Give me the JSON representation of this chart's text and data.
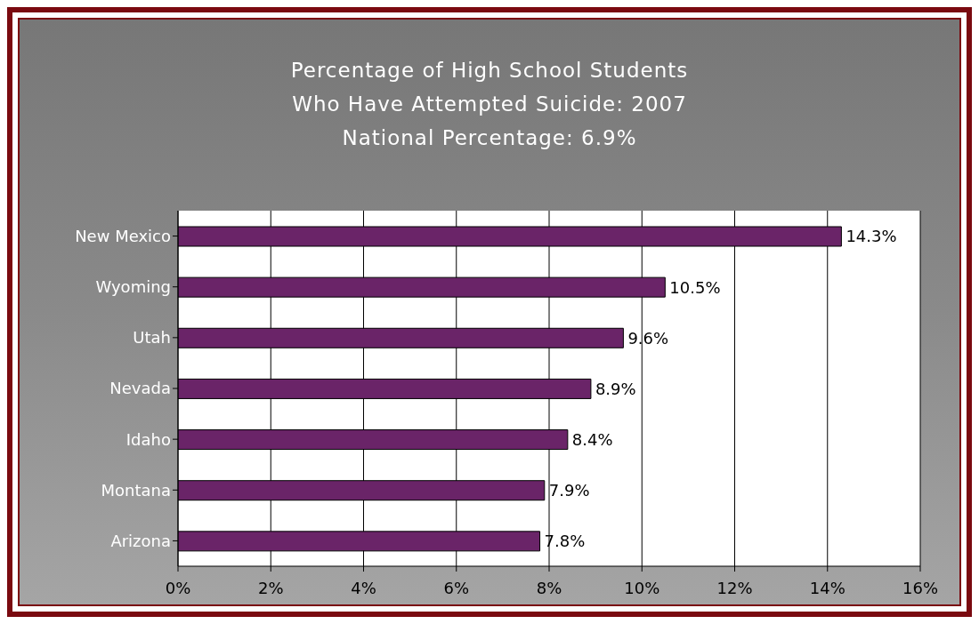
{
  "chart_data": {
    "type": "bar",
    "orientation": "horizontal",
    "title": "Percentage of High School Students\nWho Have Attempted Suicide:  2007",
    "subtitle": "National Percentage:  6.9%",
    "categories": [
      "New Mexico",
      "Wyoming",
      "Utah",
      "Nevada",
      "Idaho",
      "Montana",
      "Arizona"
    ],
    "values": [
      14.3,
      10.5,
      9.6,
      8.9,
      8.4,
      7.9,
      7.8
    ],
    "value_labels": [
      "14.3%",
      "10.5%",
      "9.6%",
      "8.9%",
      "8.4%",
      "7.9%",
      "7.8%"
    ],
    "color": "#6a2468",
    "xlim": [
      0,
      16
    ],
    "xticks": [
      {
        "value": 0,
        "label": "0%"
      },
      {
        "value": 2,
        "label": "2%"
      },
      {
        "value": 4,
        "label": "4%"
      },
      {
        "value": 6,
        "label": "6%"
      },
      {
        "value": 8,
        "label": "8%"
      },
      {
        "value": 10,
        "label": "10%"
      },
      {
        "value": 12,
        "label": "12%"
      },
      {
        "value": 14,
        "label": "14%"
      },
      {
        "value": 16,
        "label": "16%"
      }
    ],
    "grid": "x",
    "legend": false
  }
}
